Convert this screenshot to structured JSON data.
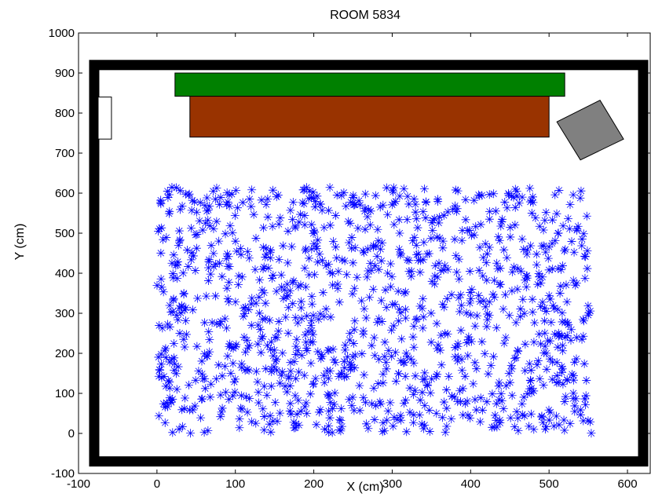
{
  "chart_data": {
    "type": "scatter",
    "title": "ROOM 5834",
    "xlabel": "X (cm)",
    "ylabel": "Y (cm)",
    "xlim": [
      -100,
      630
    ],
    "ylim": [
      -100,
      1000
    ],
    "xticks": [
      -100,
      0,
      100,
      200,
      300,
      400,
      500,
      600
    ],
    "yticks": [
      -100,
      0,
      100,
      200,
      300,
      400,
      500,
      600,
      700,
      800,
      900,
      1000
    ],
    "grid": false,
    "legend": "none",
    "marker": "asterisk",
    "marker_color": "#0000ff",
    "point_region": {
      "x": [
        0,
        555
      ],
      "y": [
        0,
        615
      ]
    },
    "point_count": 1200,
    "room": {
      "walls": {
        "x": [
          -80,
          620
        ],
        "y": [
          -70,
          920
        ],
        "thickness": 12,
        "color": "#000000"
      },
      "objects": [
        {
          "name": "door",
          "shape": "rect",
          "x": [
            -75,
            -58
          ],
          "y": [
            735,
            840
          ],
          "fill": "#ffffff"
        },
        {
          "name": "green-table",
          "shape": "rect",
          "x": [
            23,
            520
          ],
          "y": [
            842,
            900
          ],
          "fill": "#008000"
        },
        {
          "name": "brown-table",
          "shape": "rect",
          "x": [
            42,
            500
          ],
          "y": [
            740,
            842
          ],
          "fill": "#993300"
        },
        {
          "name": "gray-box",
          "shape": "polygon",
          "points": [
            [
              510,
              778
            ],
            [
              565,
              832
            ],
            [
              595,
              735
            ],
            [
              540,
              683
            ]
          ],
          "fill": "#808080"
        }
      ]
    }
  }
}
